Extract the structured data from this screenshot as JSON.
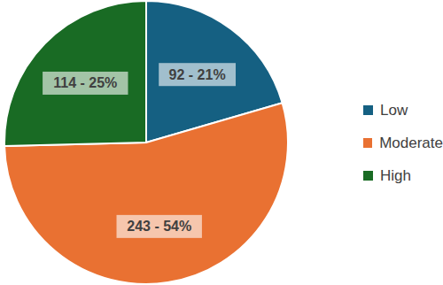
{
  "chart_data": {
    "type": "pie",
    "categories": [
      "Low",
      "Moderate",
      "High"
    ],
    "values": [
      92,
      243,
      114
    ],
    "value_labels": [
      "92 - 21%",
      "243 - 54%",
      "114 - 25%"
    ],
    "colors": [
      "#156082",
      "#E97132",
      "#196B24"
    ],
    "data_labels": true,
    "legend": "right"
  }
}
